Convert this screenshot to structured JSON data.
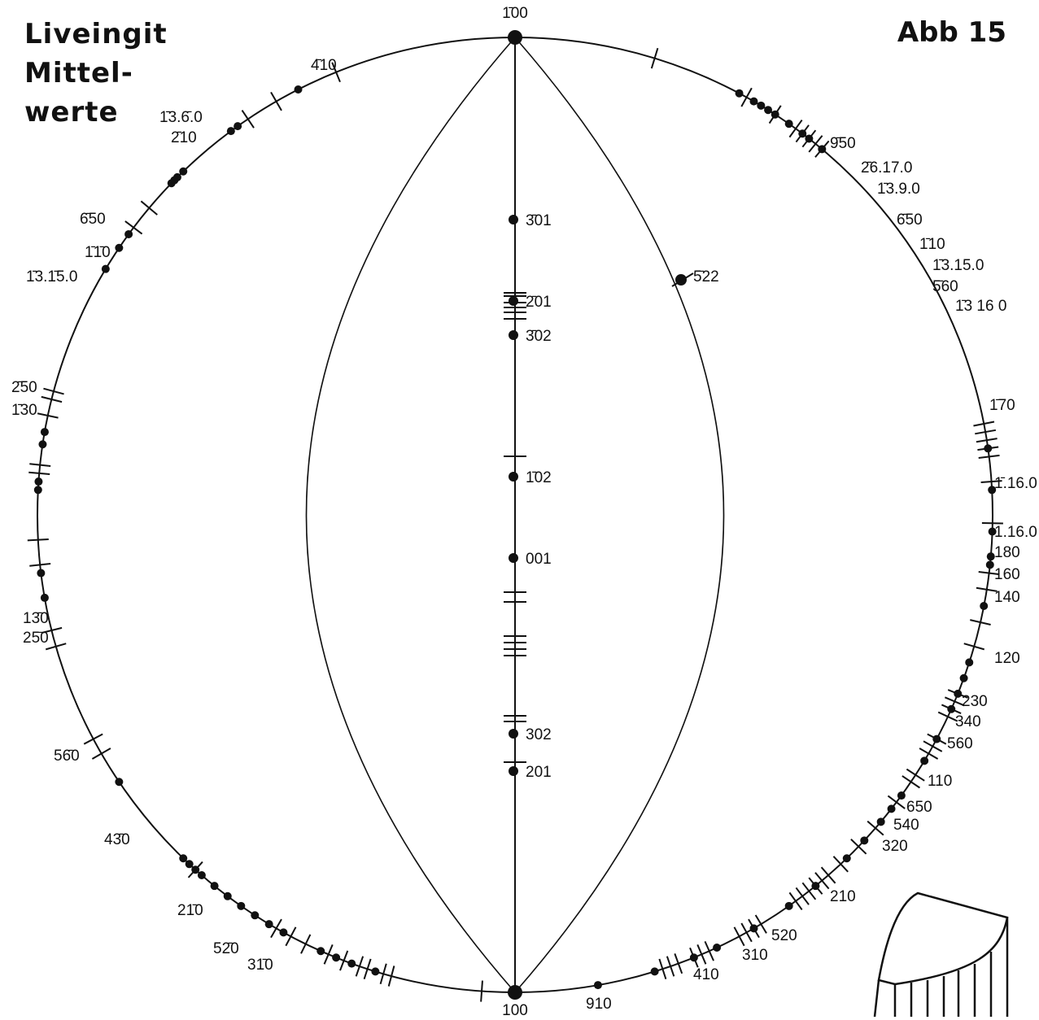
{
  "title": {
    "line1": "Liveingit",
    "line2": "Mittel-",
    "line3": "werte"
  },
  "figure_label": "Abb 15",
  "center_labels": [
    {
      "text": "1̄00",
      "pos": "top"
    },
    {
      "text": "3̄01"
    },
    {
      "text": "2̄01"
    },
    {
      "text": "3̄02"
    },
    {
      "text": "1̄02"
    },
    {
      "text": "001"
    },
    {
      "text": "302"
    },
    {
      "text": "201"
    },
    {
      "text": "100",
      "pos": "bottom"
    }
  ],
  "arc_labels": [
    {
      "text": "5̄22"
    }
  ],
  "rim_labels_left": [
    "4̄10",
    "1̄3.6̄.0",
    "2̄10",
    "6̄50",
    "1̄1̄0",
    "1̄3.1̄5.0",
    "2̄50",
    "1̄30",
    "13̄0",
    "25̄0",
    "56̄0",
    "43̄0",
    "21̄0",
    "52̄0",
    "31̄0"
  ],
  "rim_labels_right": [
    "9̄50",
    "2̄6.17.0",
    "1̄3.9.0",
    "6̄50",
    "1̄10",
    "1̄3.15.0",
    "5̄60",
    "1̄3 16 0",
    "1̄70",
    "1̄.16.0",
    "1.16.0",
    "180",
    "160",
    "140",
    "120",
    "230",
    "340",
    "560",
    "110",
    "650",
    "540",
    "320",
    "210",
    "520",
    "310",
    "410",
    "910"
  ],
  "inset": {
    "description_icon": "crystal-prism-sketch"
  }
}
